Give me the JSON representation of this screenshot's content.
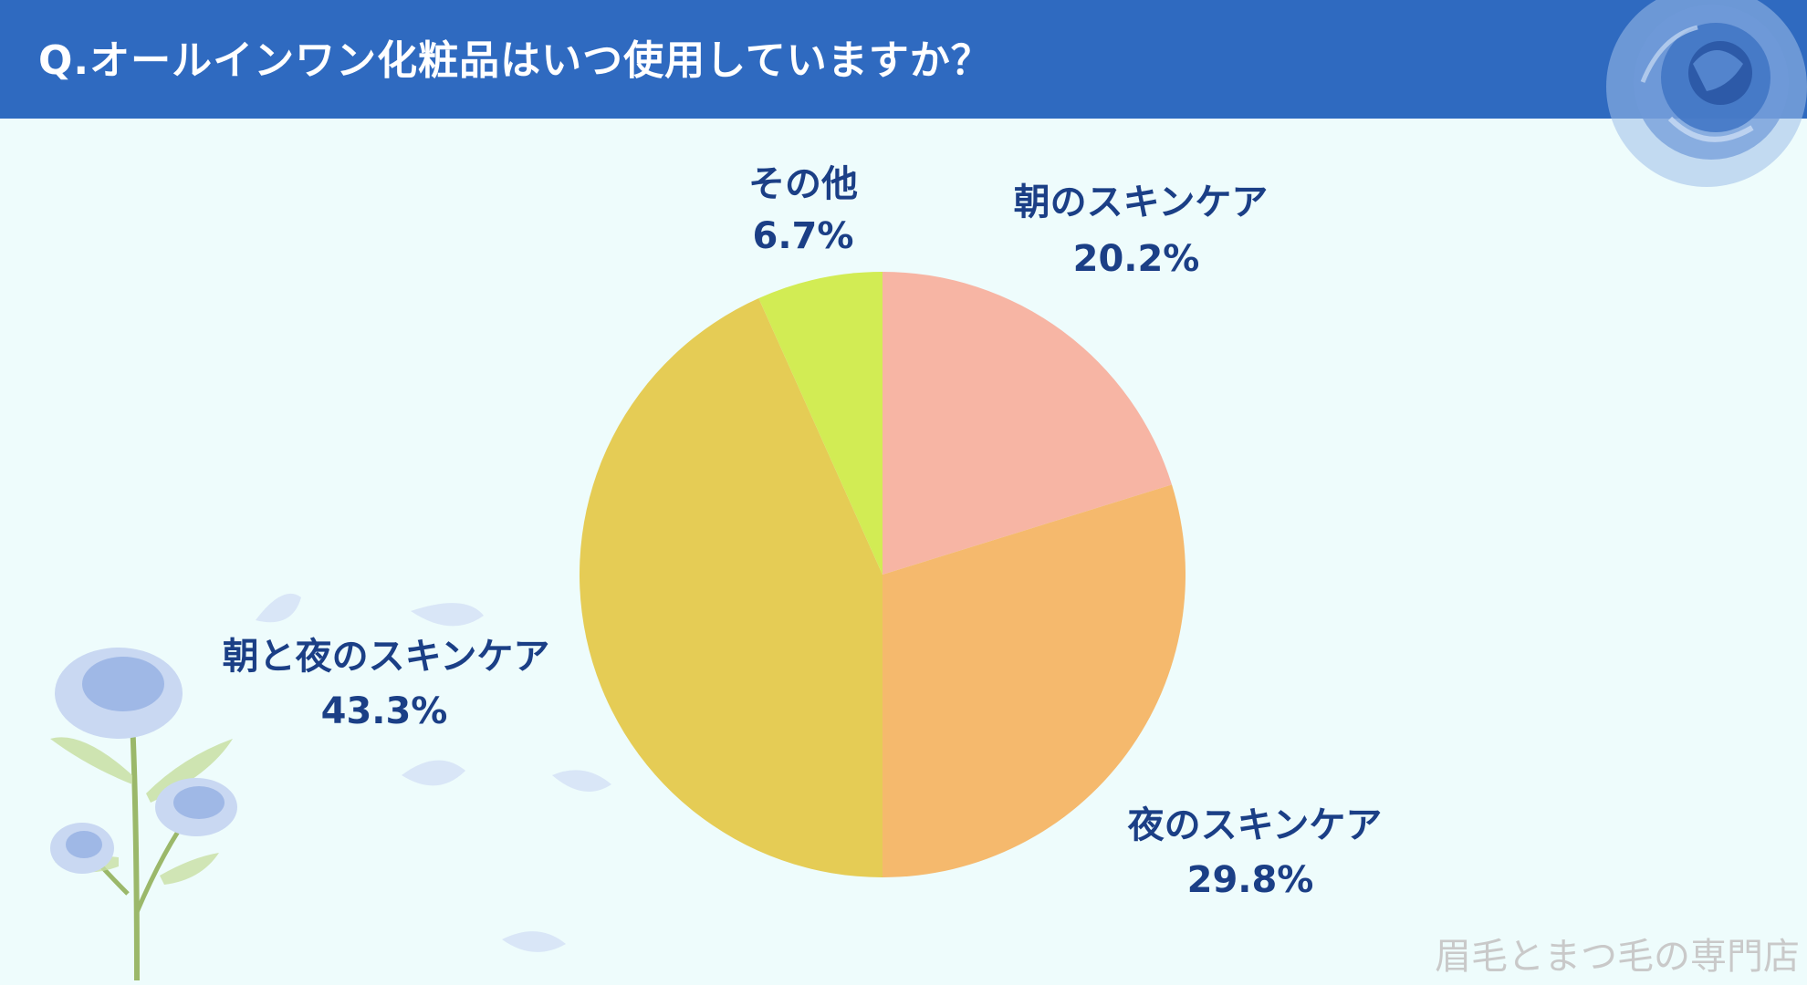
{
  "header": {
    "title": "Q.オールインワン化粧品はいつ使用していますか？"
  },
  "watermark": "眉毛とまつ毛の専門店",
  "colors": {
    "header_bg": "#2f6ac0",
    "background": "#eefcfc",
    "label_text": "#1b3f86",
    "slice_morning": "#f7b5a4",
    "slice_night": "#f5b96d",
    "slice_both": "#e5cc55",
    "slice_other": "#d2ec54"
  },
  "decorations": [
    "blue-rose-top-right",
    "blue-rose-bouquet-bottom-left",
    "petal-shapes"
  ],
  "chart_data": {
    "type": "pie",
    "title": "Q.オールインワン化粧品はいつ使用していますか？",
    "start_angle_deg": 0,
    "direction": "clockwise",
    "slices": [
      {
        "label": "朝のスキンケア",
        "value": 20.2,
        "display": "20.2%",
        "color": "#f7b5a4"
      },
      {
        "label": "夜のスキンケア",
        "value": 29.8,
        "display": "29.8%",
        "color": "#f5b96d"
      },
      {
        "label": "朝と夜のスキンケア",
        "value": 43.3,
        "display": "43.3%",
        "color": "#e5cc55"
      },
      {
        "label": "その他",
        "value": 6.7,
        "display": "6.7%",
        "color": "#d2ec54"
      }
    ]
  }
}
